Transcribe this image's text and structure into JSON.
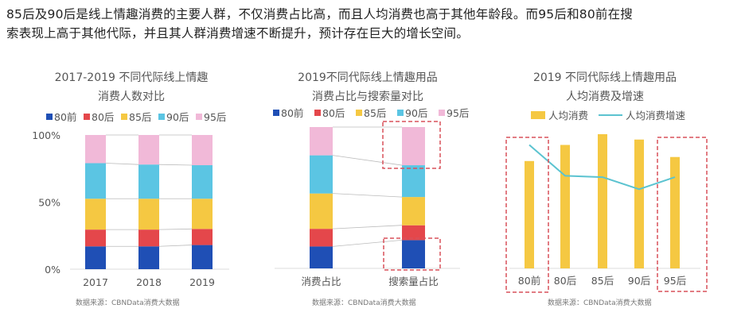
{
  "intro": {
    "line1": "85后及90后是线上情趣消费的主要人群，不仅消费占比高，而且人均消费也高于其他年龄段。而95后和80前在搜",
    "line2": "索表现上高于其他代际，并且其人群消费增速不断提升，预计存在巨大的增长空间。"
  },
  "colors": {
    "80前": "#1f4fb5",
    "80后": "#e4474b",
    "85后": "#f5c842",
    "90后": "#5bc5e3",
    "95后": "#f1b9d8",
    "line": "#5bc3d0",
    "highlight": "#d9505a"
  },
  "chart_data": [
    {
      "type": "bar",
      "stacked": true,
      "title": [
        "2017-2019 不同代际线上情趣",
        "消费人数对比"
      ],
      "categories": [
        "2017",
        "2018",
        "2019"
      ],
      "series": [
        {
          "name": "80前",
          "values": [
            17,
            17,
            18
          ]
        },
        {
          "name": "80后",
          "values": [
            12.5,
            12.5,
            12
          ]
        },
        {
          "name": "85后",
          "values": [
            23,
            23,
            22.5
          ]
        },
        {
          "name": "90后",
          "values": [
            26.5,
            25.5,
            25
          ]
        },
        {
          "name": "95后",
          "values": [
            21,
            22,
            22.5
          ]
        }
      ],
      "yticks": [
        "0%",
        "50%",
        "100%"
      ],
      "ylim": [
        0,
        100
      ],
      "legend": "top",
      "source": "数据来源：CBNData消费大数据"
    },
    {
      "type": "bar",
      "stacked": true,
      "title": [
        "2019不同代际线上情趣用品",
        "消费占比与搜索量对比"
      ],
      "categories": [
        "消费占比",
        "搜索量占比"
      ],
      "series": [
        {
          "name": "80前",
          "values": [
            15.5,
            20
          ]
        },
        {
          "name": "80后",
          "values": [
            12.5,
            10.5
          ]
        },
        {
          "name": "85后",
          "values": [
            25,
            20
          ]
        },
        {
          "name": "90后",
          "values": [
            27,
            22.5
          ]
        },
        {
          "name": "95后",
          "values": [
            20,
            27
          ]
        }
      ],
      "ylim": [
        0,
        100
      ],
      "highlighted": [
        "搜索量占比:95后",
        "搜索量占比:80前"
      ],
      "legend": "top",
      "source": "数据来源：CBNData消费大数据"
    },
    {
      "type": "bar",
      "title": [
        "2019 不同代际线上情趣用品",
        "人均消费及增速"
      ],
      "categories": [
        "80前",
        "80后",
        "85后",
        "90后",
        "95后"
      ],
      "series": [
        {
          "name": "人均消费",
          "type": "bar",
          "values": [
            80,
            92,
            100,
            96,
            83
          ]
        },
        {
          "name": "人均消费增速",
          "type": "line",
          "values": [
            92,
            69,
            68,
            59,
            68
          ]
        }
      ],
      "highlighted": [
        "80前",
        "95后"
      ],
      "legend": "top",
      "source": "数据来源：CBNData消费大数据"
    }
  ]
}
